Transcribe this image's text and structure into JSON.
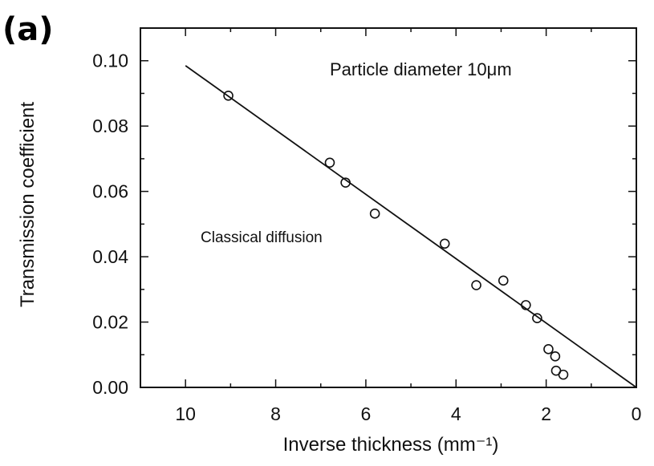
{
  "figure": {
    "panel_label": "(a)"
  },
  "chart_data": {
    "type": "scatter",
    "title": "",
    "xlabel": "Inverse thickness (mm⁻¹)",
    "ylabel": "Transmission coefficient",
    "xlim": [
      11,
      0
    ],
    "ylim": [
      0.0,
      0.11
    ],
    "x_ticks": [
      10,
      8,
      6,
      4,
      2,
      0
    ],
    "x_tick_labels": [
      "10",
      "8",
      "6",
      "4",
      "2",
      "0"
    ],
    "y_ticks": [
      0.0,
      0.02,
      0.04,
      0.06,
      0.08,
      0.1
    ],
    "y_tick_labels": [
      "0.00",
      "0.02",
      "0.04",
      "0.06",
      "0.08",
      "0.10"
    ],
    "grid": false,
    "annotations": [
      "Particle diameter 10μm",
      "Classical diffusion"
    ],
    "series": [
      {
        "marker": "open-circle",
        "x": [
          9.05,
          6.8,
          6.45,
          5.8,
          4.25,
          3.55,
          2.95,
          2.45,
          2.2,
          1.95,
          1.8,
          1.78,
          1.62
        ],
        "y": [
          0.0893,
          0.0688,
          0.0627,
          0.0532,
          0.044,
          0.0313,
          0.0327,
          0.0252,
          0.0212,
          0.0117,
          0.0095,
          0.0051,
          0.0039
        ]
      },
      {
        "marker": "line",
        "x": [
          10.0,
          0.0
        ],
        "y": [
          0.0985,
          0.0
        ]
      }
    ]
  }
}
